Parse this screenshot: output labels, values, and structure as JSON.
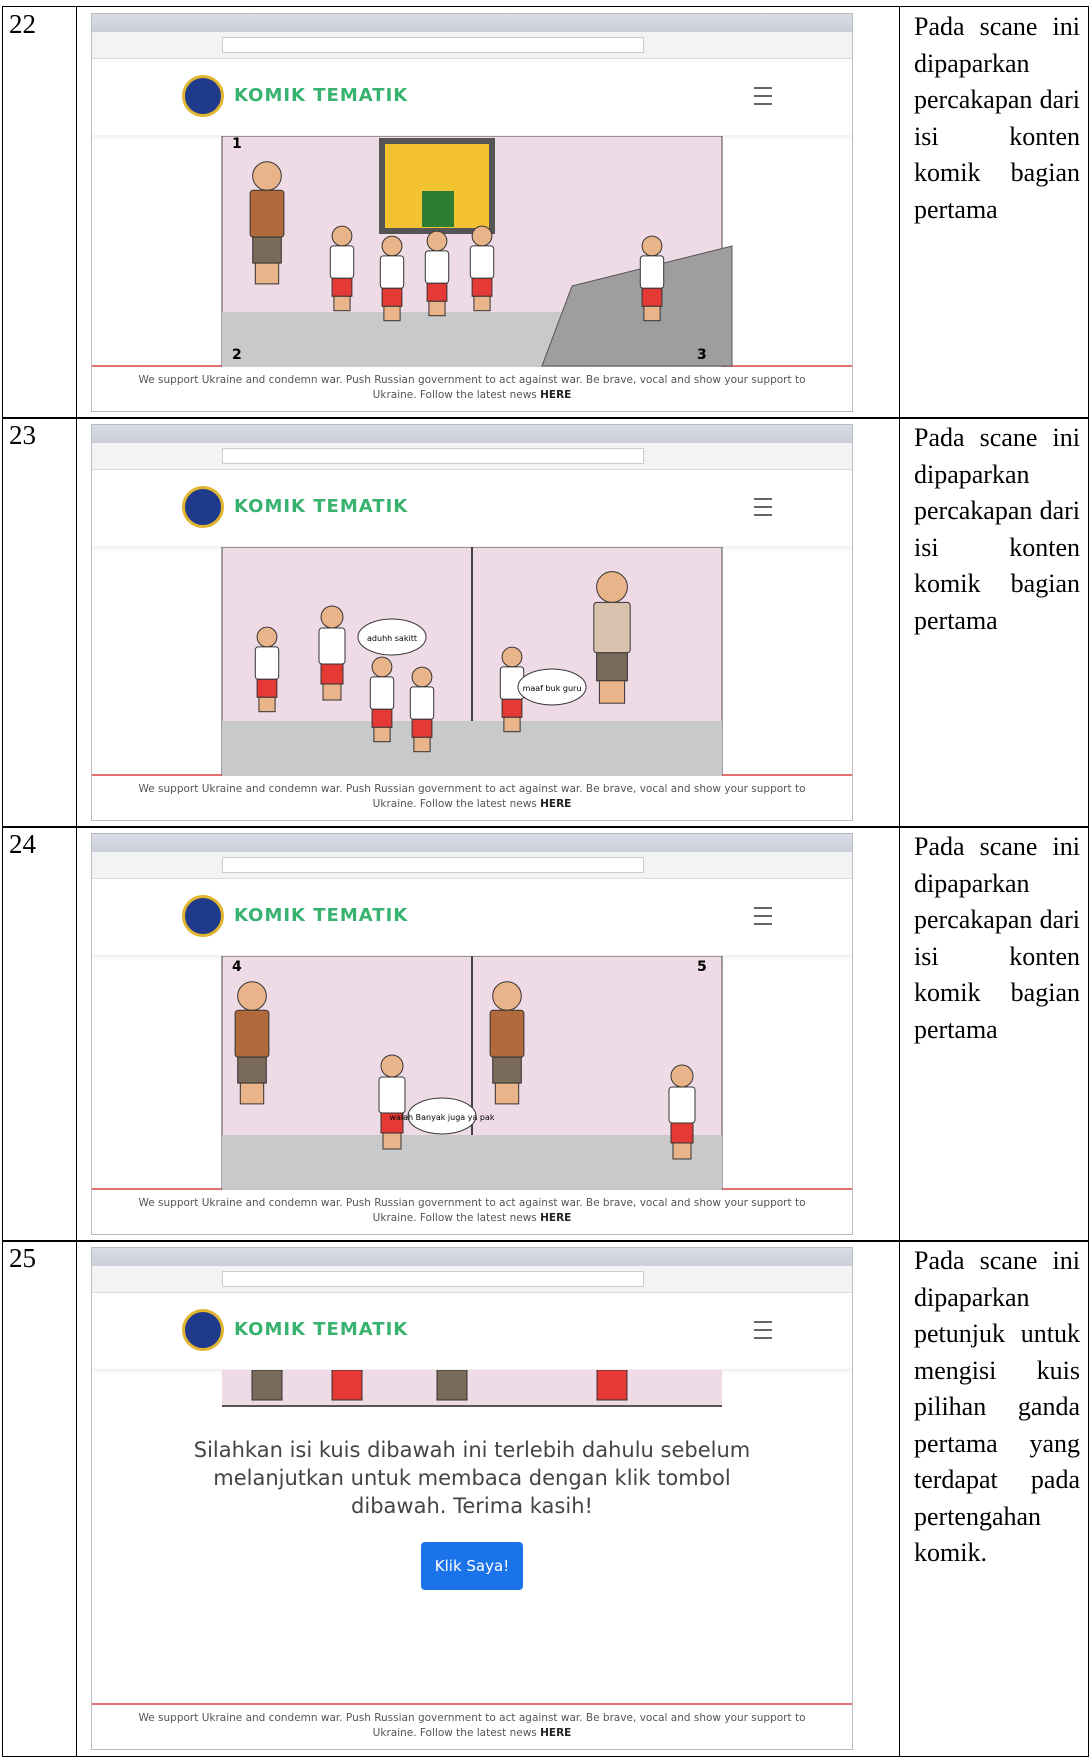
{
  "table": {
    "rows": [
      {
        "number": "22",
        "screenshot": {
          "brand": "KOMIK TEMATIK",
          "panel_numbers": [
            "1",
            "2",
            "3"
          ],
          "bubbles": [],
          "footer": "We support Ukraine and condemn war. Push Russian government to act against war. Be brave, vocal and show your support to Ukraine. Follow the latest news",
          "footer_link": "HERE"
        },
        "description": "Pada scane ini dipaparkan percakapan dari isi konten komik bagian pertama"
      },
      {
        "number": "23",
        "screenshot": {
          "brand": "KOMIK TEMATIK",
          "panel_numbers": [],
          "bubbles": [
            "aduhh sakitt",
            "maaf buk guru"
          ],
          "footer": "We support Ukraine and condemn war. Push Russian government to act against war. Be brave, vocal and show your support to Ukraine. Follow the latest news",
          "footer_link": "HERE"
        },
        "description": "Pada scane ini dipaparkan percakapan dari isi konten komik bagian pertama"
      },
      {
        "number": "24",
        "screenshot": {
          "brand": "KOMIK TEMATIK",
          "panel_numbers": [
            "4",
            "5"
          ],
          "bubbles": [
            "walah Banyak juga ya pak"
          ],
          "footer": "We support Ukraine and condemn war. Push Russian government to act against war. Be brave, vocal and show your support to Ukraine. Follow the latest news",
          "footer_link": "HERE"
        },
        "description": "Pada scane ini dipaparkan percakapan dari isi konten komik bagian pertama"
      },
      {
        "number": "25",
        "screenshot": {
          "brand": "KOMIK TEMATIK",
          "quiz_text": "Silahkan isi kuis dibawah ini terlebih dahulu sebelum melanjutkan untuk membaca dengan klik tombol dibawah. Terima kasih!",
          "button": "Klik Saya!",
          "footer": "We support Ukraine and condemn war. Push Russian government to act against war. Be brave, vocal and show your support to Ukraine. Follow the latest news",
          "footer_link": "HERE"
        },
        "description": "Pada scane ini dipaparkan petunjuk untuk mengisi kuis pilihan ganda pertama yang terdapat pada pertengahan komik."
      }
    ]
  }
}
